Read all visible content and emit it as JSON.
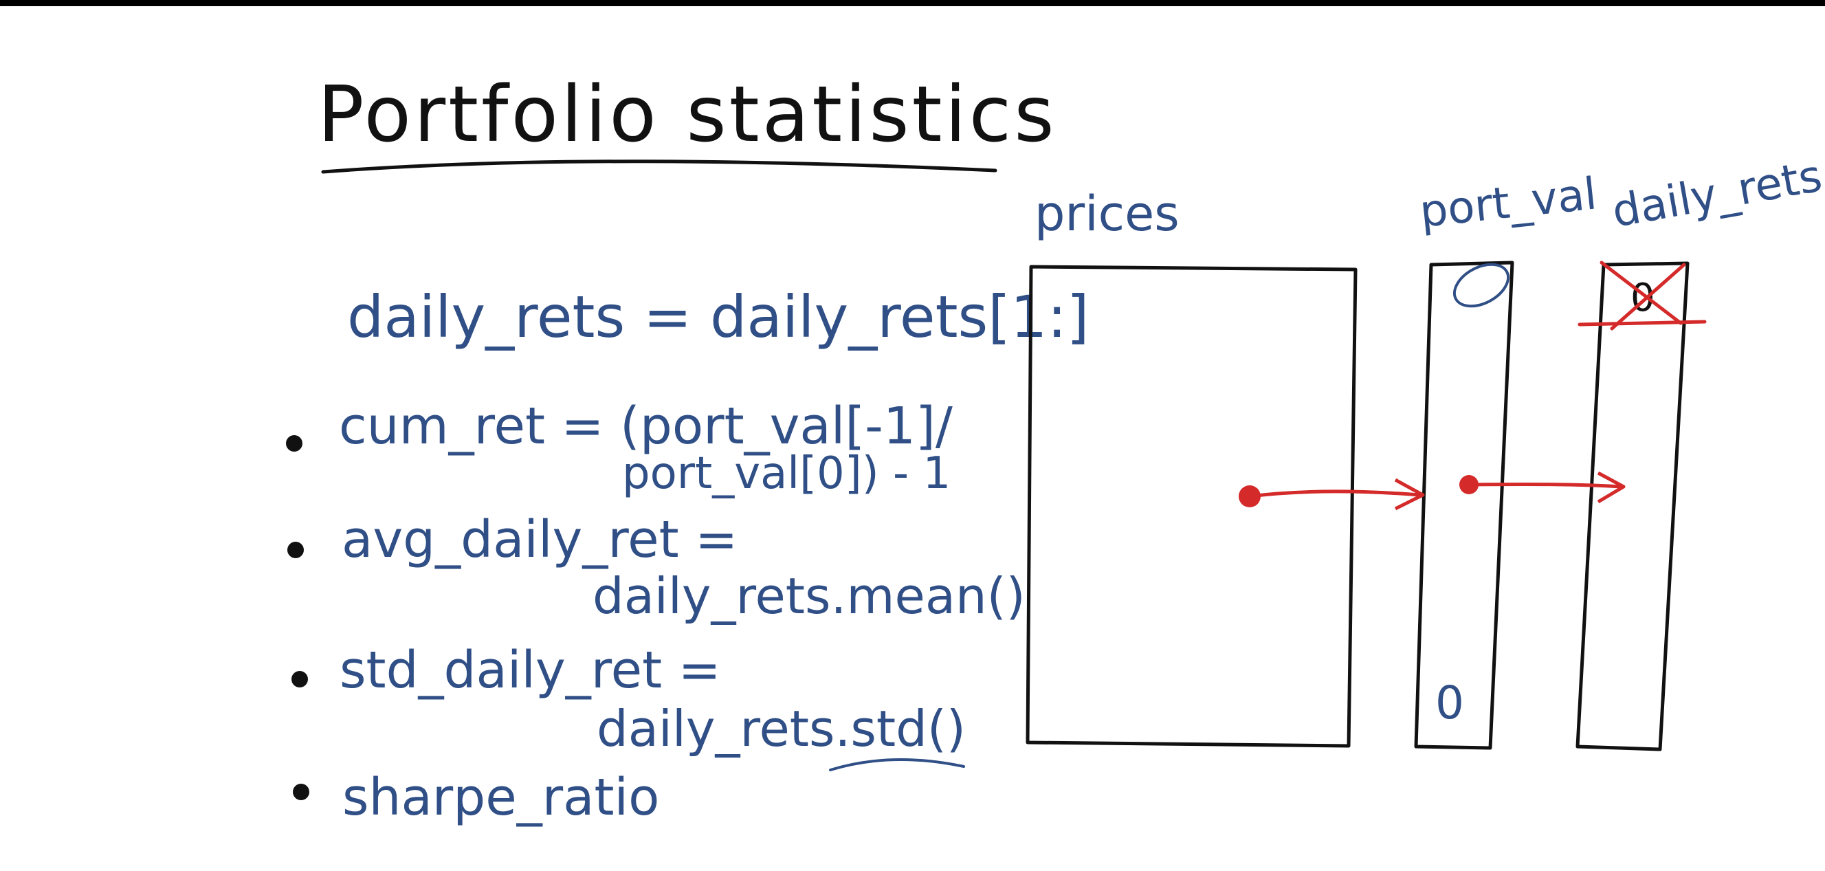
{
  "title": "Portfolio statistics",
  "code_line": "daily_rets = daily_rets[1:]",
  "bullets": [
    {
      "line1": "cum_ret = (port_val[-1]/",
      "line2": "port_val[0]) - 1"
    },
    {
      "line1": "avg_daily_ret =",
      "line2": "daily_rets.mean()"
    },
    {
      "line1": "std_daily_ret =",
      "line2": "daily_rets.std()"
    },
    {
      "line1": "sharpe_ratio",
      "line2": ""
    }
  ],
  "diagram": {
    "prices_label": "prices",
    "port_val_label": "port_val",
    "daily_rets_label": "daily_rets",
    "port_val_top": "0",
    "port_val_bottom": "0",
    "daily_rets_top": "0"
  },
  "colors": {
    "ink_blue": "#2f4f86",
    "ink_black": "#111111",
    "ink_red": "#d42a2a",
    "background": "#ffffff"
  }
}
